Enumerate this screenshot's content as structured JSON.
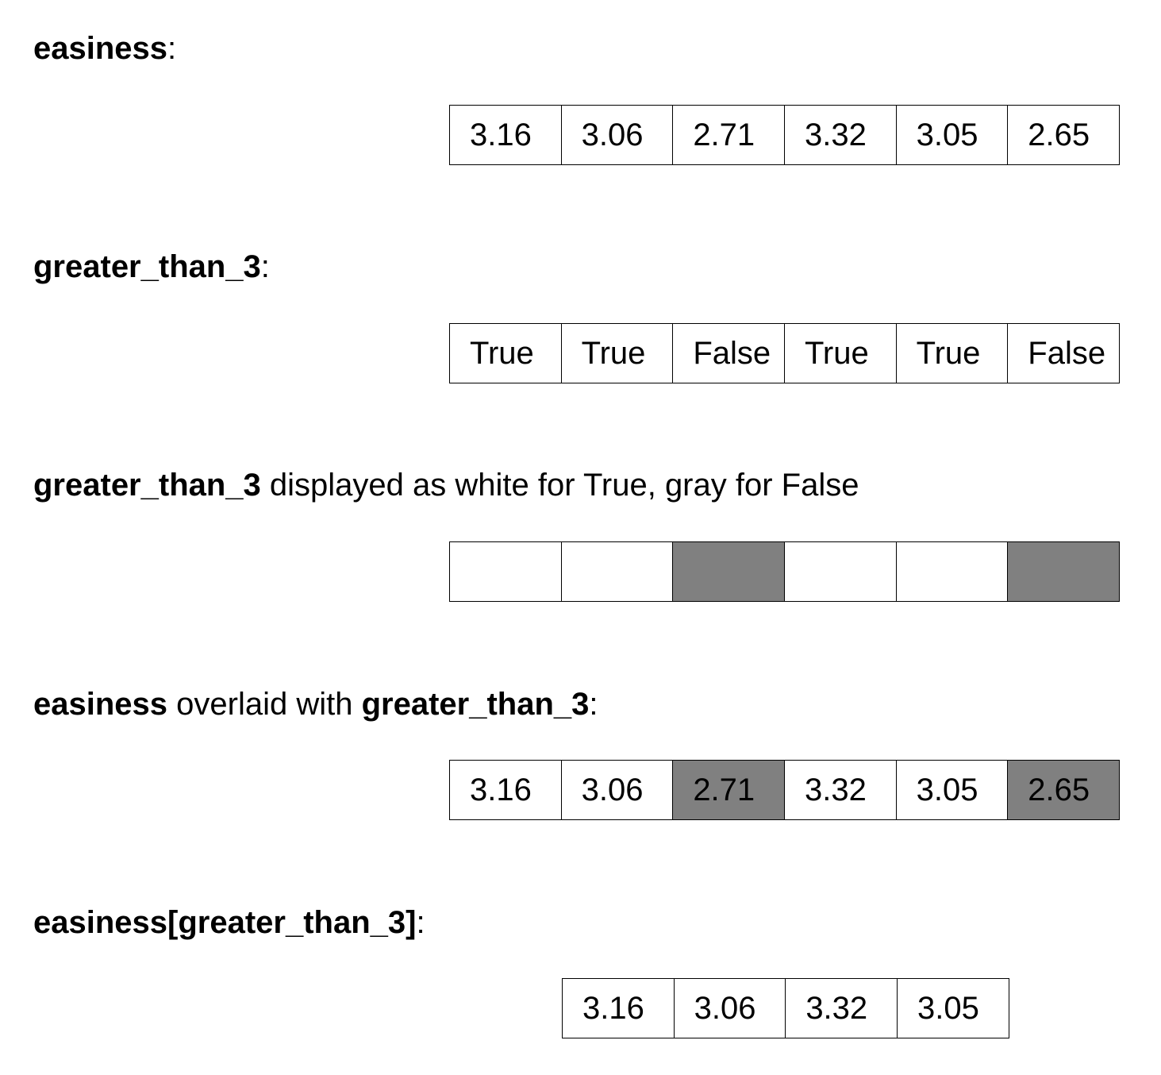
{
  "sections": [
    {
      "heading": {
        "bold1": "easiness",
        "mid": "",
        "bold2": "",
        "tail": ":"
      },
      "cells": [
        {
          "text": "3.16",
          "gray": false
        },
        {
          "text": "3.06",
          "gray": false
        },
        {
          "text": "2.71",
          "gray": false
        },
        {
          "text": "3.32",
          "gray": false
        },
        {
          "text": "3.05",
          "gray": false
        },
        {
          "text": "2.65",
          "gray": false
        }
      ]
    },
    {
      "heading": {
        "bold1": "greater_than_3",
        "mid": "",
        "bold2": "",
        "tail": ":"
      },
      "cells": [
        {
          "text": "True",
          "gray": false
        },
        {
          "text": "True",
          "gray": false
        },
        {
          "text": "False",
          "gray": false
        },
        {
          "text": "True",
          "gray": false
        },
        {
          "text": "True",
          "gray": false
        },
        {
          "text": "False",
          "gray": false
        }
      ]
    },
    {
      "heading": {
        "bold1": "greater_than_3",
        "mid": " displayed as white for True, gray for False",
        "bold2": "",
        "tail": ""
      },
      "cells": [
        {
          "text": "",
          "gray": false
        },
        {
          "text": "",
          "gray": false
        },
        {
          "text": "",
          "gray": true
        },
        {
          "text": "",
          "gray": false
        },
        {
          "text": "",
          "gray": false
        },
        {
          "text": "",
          "gray": true
        }
      ]
    },
    {
      "heading": {
        "bold1": "easiness",
        "mid": " overlaid with ",
        "bold2": "greater_than_3",
        "tail": ":"
      },
      "cells": [
        {
          "text": "3.16",
          "gray": false
        },
        {
          "text": "3.06",
          "gray": false
        },
        {
          "text": "2.71",
          "gray": true
        },
        {
          "text": "3.32",
          "gray": false
        },
        {
          "text": "3.05",
          "gray": false
        },
        {
          "text": "2.65",
          "gray": true
        }
      ]
    },
    {
      "heading": {
        "bold1": "easiness[greater_than_3]",
        "mid": "",
        "bold2": "",
        "tail": ":"
      },
      "cells": [
        {
          "text": "3.16",
          "gray": false
        },
        {
          "text": "3.06",
          "gray": false
        },
        {
          "text": "3.32",
          "gray": false
        },
        {
          "text": "3.05",
          "gray": false
        }
      ]
    }
  ],
  "colors": {
    "true_fill": "#ffffff",
    "false_fill": "#808080",
    "border": "#000000"
  }
}
